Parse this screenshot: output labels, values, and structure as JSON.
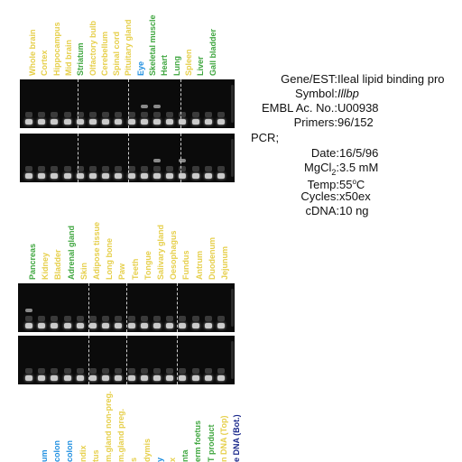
{
  "colors": {
    "yellow": "#e6cf4a",
    "green": "#3fa63f",
    "blue": "#1f8fe0",
    "navy": "#1b2a8c",
    "gel_bg": "#0b0b0b",
    "band": "#ededed"
  },
  "panel1": {
    "labels": [
      {
        "text": "Whole brain",
        "color": "yellow"
      },
      {
        "text": "Cortex",
        "color": "yellow"
      },
      {
        "text": "Hippocampus",
        "color": "yellow"
      },
      {
        "text": "Mid brain",
        "color": "yellow"
      },
      {
        "text": "Striatum",
        "color": "green"
      },
      {
        "text": "Olfactory bulb",
        "color": "yellow"
      },
      {
        "text": "Cerebellum",
        "color": "yellow"
      },
      {
        "text": "Spinal cord",
        "color": "yellow"
      },
      {
        "text": "Pituitary gland",
        "color": "yellow"
      },
      {
        "text": "Eye",
        "color": "blue"
      },
      {
        "text": "Skeletal muscle",
        "color": "green"
      },
      {
        "text": "Heart",
        "color": "green"
      },
      {
        "text": "Lung",
        "color": "green"
      },
      {
        "text": "Spleen",
        "color": "yellow"
      },
      {
        "text": "Liver",
        "color": "green"
      },
      {
        "text": "Gall bladder",
        "color": "green"
      }
    ]
  },
  "panel2": {
    "labels": [
      {
        "text": "Pancreas",
        "color": "green"
      },
      {
        "text": "Kidney",
        "color": "yellow"
      },
      {
        "text": "Bladder",
        "color": "yellow"
      },
      {
        "text": "Adrenal gland",
        "color": "green"
      },
      {
        "text": "Skin",
        "color": "yellow"
      },
      {
        "text": "Adipose tissue",
        "color": "yellow"
      },
      {
        "text": "Long bone",
        "color": "yellow"
      },
      {
        "text": "Paw",
        "color": "yellow"
      },
      {
        "text": "Teeth",
        "color": "yellow"
      },
      {
        "text": "Tongue",
        "color": "yellow"
      },
      {
        "text": "Salivary gland",
        "color": "yellow"
      },
      {
        "text": "Oesophagus",
        "color": "yellow"
      },
      {
        "text": "Fundus",
        "color": "yellow"
      },
      {
        "text": "Antrum",
        "color": "yellow"
      },
      {
        "text": "Duodenum",
        "color": "yellow"
      },
      {
        "text": "Jejunum",
        "color": "yellow"
      }
    ]
  },
  "panel3": {
    "labels": [
      {
        "text": "um",
        "color": "blue"
      },
      {
        "text": "colon",
        "color": "blue"
      },
      {
        "text": "colon",
        "color": "blue"
      },
      {
        "text": "ndix",
        "color": "yellow"
      },
      {
        "text": "tus",
        "color": "yellow"
      },
      {
        "text": "m.gland non-preg.",
        "color": "yellow"
      },
      {
        "text": "m.gland preg.",
        "color": "yellow"
      },
      {
        "text": "s",
        "color": "yellow"
      },
      {
        "text": "dymis",
        "color": "yellow"
      },
      {
        "text": "y",
        "color": "blue"
      },
      {
        "text": "x",
        "color": "yellow"
      },
      {
        "text": "nta",
        "color": "green"
      },
      {
        "text": "erm foetus",
        "color": "green"
      },
      {
        "text": "T product",
        "color": "green"
      },
      {
        "text": "n DNA (Top)",
        "color": "yellow"
      },
      {
        "text": "e DNA (Bot.)",
        "color": "navy"
      }
    ]
  },
  "info": {
    "gene_key": "Gene/EST:",
    "gene_val": "Ileal lipid binding pro",
    "symbol_key": "Symbol:",
    "symbol_val": "Illbp",
    "embl_key": "EMBL Ac. No.:",
    "embl_val": "U00938",
    "primers_key": "Primers:",
    "primers_val": "96/152",
    "pcr": "PCR;",
    "date_key": "Date:",
    "date_val": "16/5/96",
    "mgcl_key": "MgCl",
    "mgcl_sub": "2",
    "mgcl_colon": ":",
    "mgcl_val": "3.5 mM",
    "temp_key": "Temp:",
    "temp_val": "55",
    "temp_sup": "o",
    "temp_unit": "C",
    "cycles_key": "Cycles:",
    "cycles_val": "x50ex",
    "cdna_key": "cDNA:",
    "cdna_val": "10 ng"
  }
}
